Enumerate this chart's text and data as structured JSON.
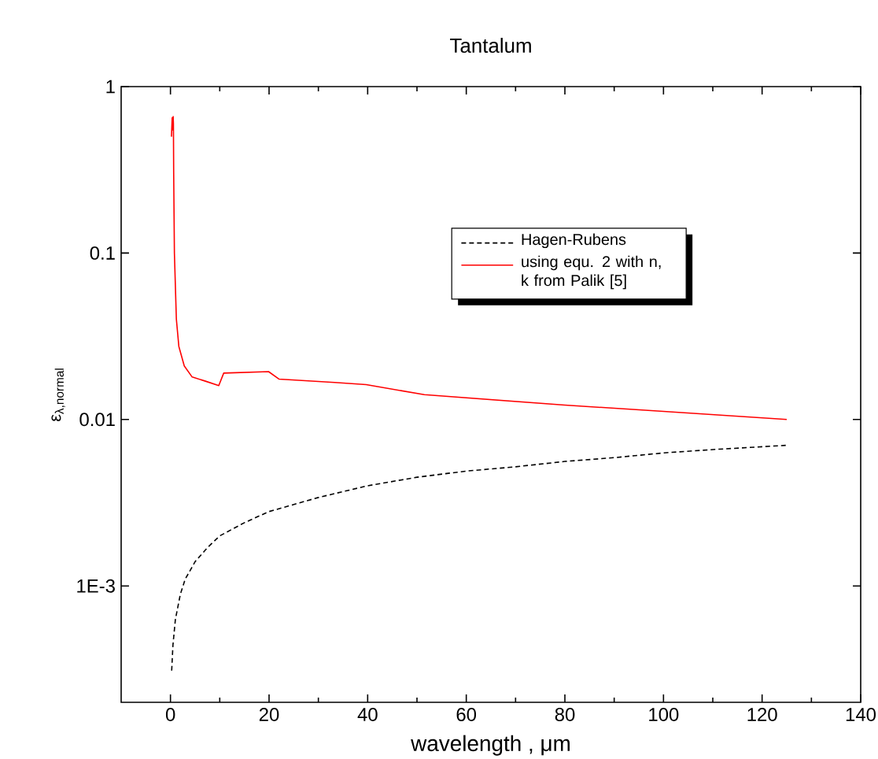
{
  "chart_data": {
    "type": "line",
    "title": "Tantalum",
    "xlabel": "wavelength , μm",
    "ylabel": "ε$_{λ,normal}$",
    "log": "y",
    "xlim": [
      -10,
      140
    ],
    "ylim": [
      0.0002,
      1
    ],
    "xticks": [
      0,
      20,
      40,
      60,
      80,
      100,
      120,
      140
    ],
    "yticks": [
      {
        "value": 0.001,
        "label": "1E-3"
      },
      {
        "value": 0.01,
        "label": "0.01"
      },
      {
        "value": 0.1,
        "label": "0.1"
      },
      {
        "value": 1,
        "label": "1"
      }
    ],
    "grid": false,
    "legend": "top right",
    "marker": "none",
    "series": [
      {
        "name": "Hagen-Rubens",
        "color": "#000000",
        "line_style": "dashed",
        "x": [
          0.25,
          0.5,
          1,
          2,
          3,
          5,
          7.5,
          10,
          15,
          20,
          30,
          40,
          50,
          60,
          70,
          80,
          90,
          100,
          110,
          125
        ],
        "values": [
          0.00031,
          0.00044,
          0.00063,
          0.00089,
          0.0011,
          0.0014,
          0.0017,
          0.002,
          0.0024,
          0.0028,
          0.0034,
          0.004,
          0.0045,
          0.0049,
          0.0052,
          0.0056,
          0.0059,
          0.0063,
          0.0066,
          0.007
        ]
      },
      {
        "name": "using equ. 2 with n, k from Palik [5]",
        "color": "#ff0000",
        "line_style": "solid",
        "x": [
          0.2,
          0.35,
          0.45,
          0.55,
          0.6,
          0.65,
          0.8,
          1.2,
          1.7,
          2.8,
          4.4,
          7.1,
          9.8,
          10.8,
          19.9,
          22,
          33.3,
          39.7,
          51.5,
          80,
          100,
          125
        ],
        "values": [
          0.5,
          0.65,
          0.55,
          0.66,
          0.6,
          0.31,
          0.1,
          0.04,
          0.0275,
          0.021,
          0.018,
          0.017,
          0.016,
          0.019,
          0.0194,
          0.0175,
          0.0167,
          0.0162,
          0.0141,
          0.0122,
          0.0112,
          0.01
        ]
      }
    ]
  }
}
